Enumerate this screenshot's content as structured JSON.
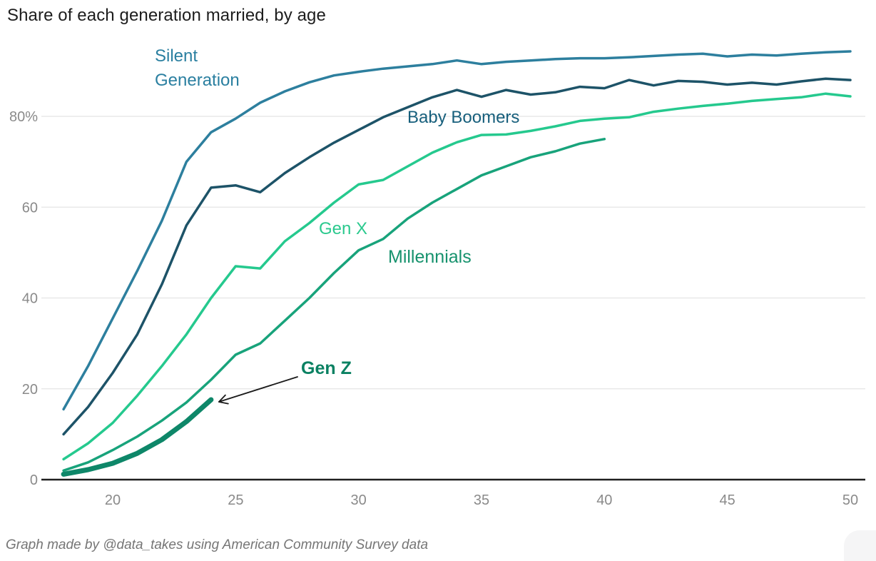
{
  "title": "Share of each generation married, by age",
  "footer": "Graph made by @data_takes using American Community Survey data",
  "colors": {
    "grid": "#e4e4e4",
    "axis": "#1f1f1f",
    "tick_text": "#8a8a8a",
    "title_text": "#1d1d1d",
    "footer_text": "#757575",
    "annotation_arrow": "#1a1a1a"
  },
  "chart_data": {
    "type": "line",
    "title": "Share of each generation married, by age",
    "xlabel": "",
    "ylabel": "",
    "xlim": [
      18,
      50
    ],
    "ylim": [
      0,
      100
    ],
    "grid": "horizontal",
    "legend_position": "inline-labels",
    "x_ticks": [
      20,
      25,
      30,
      35,
      40,
      45,
      50
    ],
    "y_ticks": [
      {
        "v": 0,
        "label": "0"
      },
      {
        "v": 20,
        "label": "20"
      },
      {
        "v": 40,
        "label": "40"
      },
      {
        "v": 60,
        "label": "60"
      },
      {
        "v": 80,
        "label": "80%"
      }
    ],
    "series": [
      {
        "name": "Silent Generation",
        "label": "Silent\nGeneration",
        "color": "#2d7f9e",
        "label_color": "#2a7fa0",
        "width": 3.5,
        "points": [
          [
            18,
            15.5
          ],
          [
            19,
            25
          ],
          [
            20,
            35.5
          ],
          [
            21,
            46
          ],
          [
            22,
            57
          ],
          [
            23,
            70
          ],
          [
            24,
            76.5
          ],
          [
            25,
            79.5
          ],
          [
            26,
            83
          ],
          [
            27,
            85.5
          ],
          [
            28,
            87.5
          ],
          [
            29,
            89
          ],
          [
            30,
            89.8
          ],
          [
            31,
            90.5
          ],
          [
            32,
            91
          ],
          [
            33,
            91.5
          ],
          [
            34,
            92.3
          ],
          [
            35,
            91.5
          ],
          [
            36,
            92
          ],
          [
            37,
            92.3
          ],
          [
            38,
            92.6
          ],
          [
            39,
            92.8
          ],
          [
            40,
            92.8
          ],
          [
            41,
            93
          ],
          [
            42,
            93.3
          ],
          [
            43,
            93.6
          ],
          [
            44,
            93.8
          ],
          [
            45,
            93.2
          ],
          [
            46,
            93.6
          ],
          [
            47,
            93.4
          ],
          [
            48,
            93.8
          ],
          [
            49,
            94.1
          ],
          [
            50,
            94.3
          ]
        ]
      },
      {
        "name": "Baby Boomers",
        "label": "Baby Boomers",
        "color": "#1d5368",
        "label_color": "#175f7c",
        "width": 3.5,
        "points": [
          [
            18,
            10
          ],
          [
            19,
            16
          ],
          [
            20,
            23.5
          ],
          [
            21,
            32
          ],
          [
            22,
            43
          ],
          [
            23,
            56
          ],
          [
            24,
            64.3
          ],
          [
            25,
            64.8
          ],
          [
            26,
            63.3
          ],
          [
            27,
            67.5
          ],
          [
            28,
            71
          ],
          [
            29,
            74.2
          ],
          [
            30,
            77
          ],
          [
            31,
            79.8
          ],
          [
            32,
            82
          ],
          [
            33,
            84.2
          ],
          [
            34,
            85.8
          ],
          [
            35,
            84.3
          ],
          [
            36,
            85.8
          ],
          [
            37,
            84.8
          ],
          [
            38,
            85.3
          ],
          [
            39,
            86.5
          ],
          [
            40,
            86.2
          ],
          [
            41,
            88
          ],
          [
            42,
            86.8
          ],
          [
            43,
            87.8
          ],
          [
            44,
            87.6
          ],
          [
            45,
            87
          ],
          [
            46,
            87.4
          ],
          [
            47,
            87
          ],
          [
            48,
            87.7
          ],
          [
            49,
            88.3
          ],
          [
            50,
            88
          ]
        ]
      },
      {
        "name": "Gen X",
        "label": "Gen X",
        "color": "#25c98e",
        "label_color": "#2bc98e",
        "width": 3.5,
        "points": [
          [
            18,
            4.5
          ],
          [
            19,
            8
          ],
          [
            20,
            12.5
          ],
          [
            21,
            18.5
          ],
          [
            22,
            25
          ],
          [
            23,
            32
          ],
          [
            24,
            40
          ],
          [
            25,
            47
          ],
          [
            26,
            46.5
          ],
          [
            27,
            52.5
          ],
          [
            28,
            56.5
          ],
          [
            29,
            61
          ],
          [
            30,
            65
          ],
          [
            31,
            66
          ],
          [
            32,
            69
          ],
          [
            33,
            72
          ],
          [
            34,
            74.3
          ],
          [
            35,
            75.9
          ],
          [
            36,
            76
          ],
          [
            37,
            76.8
          ],
          [
            38,
            77.8
          ],
          [
            39,
            79
          ],
          [
            40,
            79.5
          ],
          [
            41,
            79.8
          ],
          [
            42,
            81
          ],
          [
            43,
            81.7
          ],
          [
            44,
            82.3
          ],
          [
            45,
            82.8
          ],
          [
            46,
            83.4
          ],
          [
            47,
            83.8
          ],
          [
            48,
            84.2
          ],
          [
            49,
            85
          ],
          [
            50,
            84.4
          ]
        ]
      },
      {
        "name": "Millennials",
        "label": "Millennials",
        "color": "#18a37b",
        "label_color": "#16926d",
        "width": 3.5,
        "points": [
          [
            18,
            2
          ],
          [
            19,
            3.8
          ],
          [
            20,
            6.5
          ],
          [
            21,
            9.5
          ],
          [
            22,
            13
          ],
          [
            23,
            17
          ],
          [
            24,
            22
          ],
          [
            25,
            27.5
          ],
          [
            26,
            30
          ],
          [
            27,
            35
          ],
          [
            28,
            40
          ],
          [
            29,
            45.5
          ],
          [
            30,
            50.5
          ],
          [
            31,
            53
          ],
          [
            32,
            57.5
          ],
          [
            33,
            61
          ],
          [
            34,
            64
          ],
          [
            35,
            67
          ],
          [
            36,
            69
          ],
          [
            37,
            71
          ],
          [
            38,
            72.3
          ],
          [
            39,
            74
          ],
          [
            40,
            75
          ]
        ]
      },
      {
        "name": "Gen Z",
        "label": "Gen Z",
        "color": "#0e8769",
        "label_color": "#0a8162",
        "width": 7,
        "points": [
          [
            18,
            1.2
          ],
          [
            19,
            2.2
          ],
          [
            20,
            3.6
          ],
          [
            21,
            5.8
          ],
          [
            22,
            8.8
          ],
          [
            23,
            12.8
          ],
          [
            24,
            17.6
          ]
        ]
      }
    ],
    "annotation": {
      "text": "Gen Z",
      "points_to_series": "Gen Z",
      "points_to": {
        "age": 24,
        "value": 17.6
      }
    }
  }
}
